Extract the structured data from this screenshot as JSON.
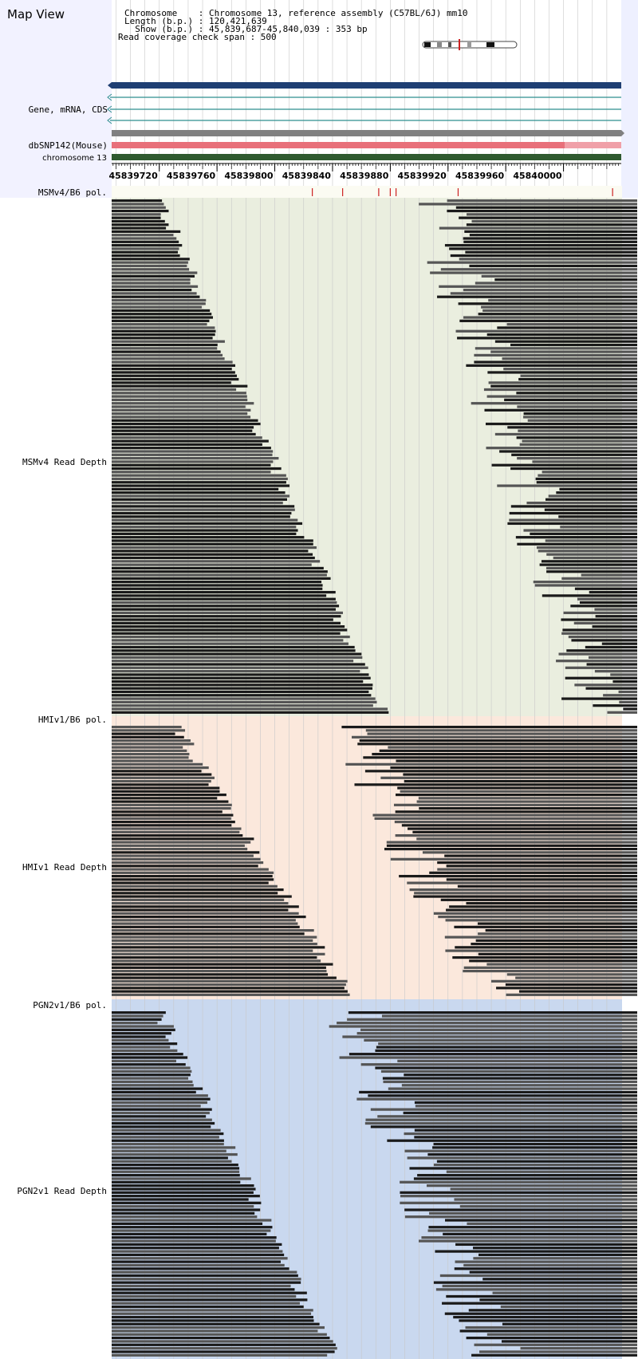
{
  "header": {
    "title": "Map View",
    "info": [
      "Chromosome    : Chromosome 13, reference assembly (C57BL/6J) mm10",
      "Length (b.p.) : 120,421,639",
      "  Show (b.p.) : 45,839,687-45,840,039 : 353 bp",
      "Read coverage check span : 500"
    ]
  },
  "tracks": {
    "gene_label": "Gene, mRNA, CDS",
    "snp_label": "dbSNP142(Mouse)",
    "chrom_label": "chromosome 13"
  },
  "axis": {
    "start": 45839687,
    "end": 45840039,
    "tick_labels": [
      "45839720",
      "45839760",
      "45839800",
      "45839840",
      "45839880",
      "45839920",
      "45839960",
      "45840000"
    ]
  },
  "panels": [
    {
      "pol_label": "MSMv4/B6 pol.",
      "depth_label": "MSMv4 Read Depth",
      "bg": "#eaeedf",
      "variant_positions": [
        45839826,
        45839847,
        45839872,
        45839880,
        45839884,
        45839927,
        45840034
      ]
    },
    {
      "pol_label": "HMIv1/B6 pol.",
      "depth_label": "HMIv1 Read Depth",
      "bg": "#fbe8dc",
      "variant_positions": []
    },
    {
      "pol_label": "PGN2v1/B6 pol.",
      "depth_label": "PGN2v1 Read Depth",
      "bg": "#c9d8ef",
      "variant_positions": []
    }
  ],
  "colors": {
    "left_panel_bg": "#f2f2ff",
    "gene_bar": "#1f3f73",
    "transcript_line": "#2f8f8f",
    "snp_bar_grey": "#808080",
    "snp_bar_red": "#e8707a",
    "chrom_bar": "#2f5a2f",
    "variant_tick": "#cc2222",
    "read_dark": "#1a1a1a",
    "read_mid": "#555555"
  }
}
